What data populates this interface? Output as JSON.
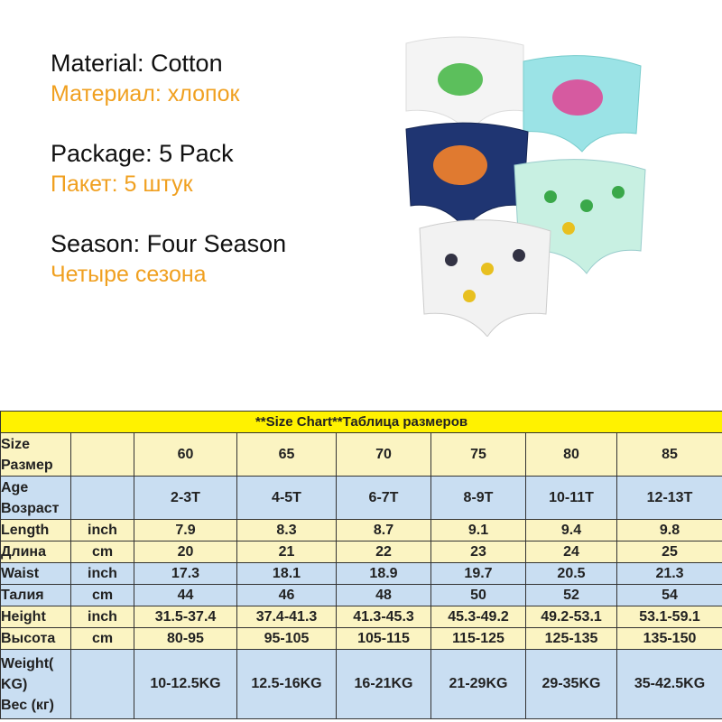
{
  "features": [
    {
      "label": "Material: Cotton",
      "label_ru": "Материал: хлопок"
    },
    {
      "label": "Package: 5 Pack",
      "label_ru": "Пакет: 5 штук"
    },
    {
      "label": "Season: Four Season",
      "label_ru": "Четыре сезона"
    }
  ],
  "table": {
    "title": "**Size Chart**Таблица размеров",
    "rows": [
      {
        "label": [
          "Size",
          "Размер"
        ],
        "unit": null,
        "values": [
          "60",
          "65",
          "70",
          "75",
          "80",
          "85"
        ],
        "tone": "yellow",
        "tall": 1
      },
      {
        "label": [
          "Age",
          "Возраст"
        ],
        "unit": null,
        "values": [
          "2-3T",
          "4-5T",
          "6-7T",
          "8-9T",
          "10-11T",
          "12-13T"
        ],
        "tone": "blue",
        "tall": 1
      },
      {
        "label": [
          "Length"
        ],
        "unit": "inch",
        "values": [
          "7.9",
          "8.3",
          "8.7",
          "9.1",
          "9.4",
          "9.8"
        ],
        "tone": "yellow",
        "tall": 0
      },
      {
        "label": [
          "Длина"
        ],
        "unit": "cm",
        "values": [
          "20",
          "21",
          "22",
          "23",
          "24",
          "25"
        ],
        "tone": "yellow",
        "tall": 0
      },
      {
        "label": [
          "Waist"
        ],
        "unit": "inch",
        "values": [
          "17.3",
          "18.1",
          "18.9",
          "19.7",
          "20.5",
          "21.3"
        ],
        "tone": "blue",
        "tall": 0
      },
      {
        "label": [
          "Талия"
        ],
        "unit": "cm",
        "values": [
          "44",
          "46",
          "48",
          "50",
          "52",
          "54"
        ],
        "tone": "blue",
        "tall": 0
      },
      {
        "label": [
          "Height"
        ],
        "unit": "inch",
        "values": [
          "31.5-37.4",
          "37.4-41.3",
          "41.3-45.3",
          "45.3-49.2",
          "49.2-53.1",
          "53.1-59.1"
        ],
        "tone": "yellow",
        "tall": 0
      },
      {
        "label": [
          "Высота"
        ],
        "unit": "cm",
        "values": [
          "80-95",
          "95-105",
          "105-115",
          "115-125",
          "125-135",
          "135-150"
        ],
        "tone": "yellow",
        "tall": 0
      },
      {
        "label": [
          "Weight(",
          "KG)",
          "Вес (кг)"
        ],
        "unit": null,
        "values": [
          "10-12.5KG",
          "12.5-16KG",
          "16-21KG",
          "21-29KG",
          "29-35KG",
          "35-42.5KG"
        ],
        "tone": "blue",
        "tall": 2
      }
    ]
  }
}
